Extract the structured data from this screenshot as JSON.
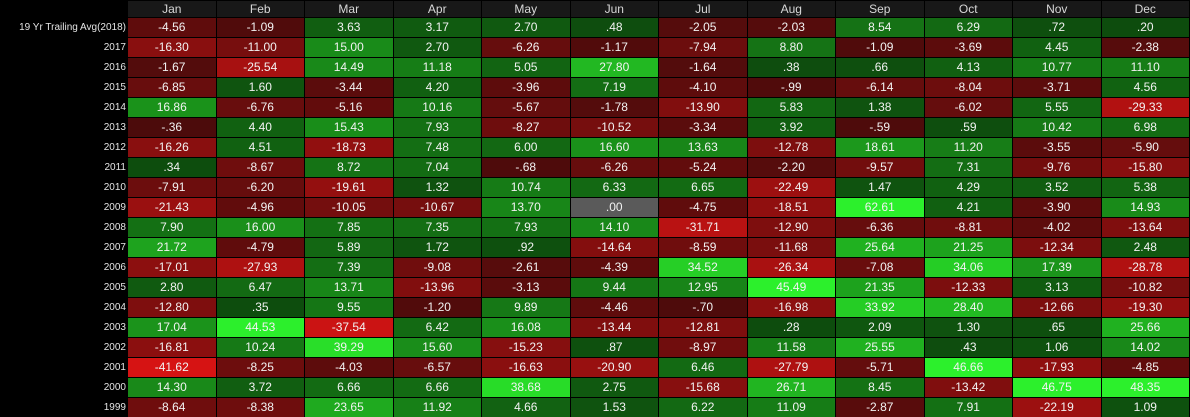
{
  "chart_data": {
    "type": "heatmap",
    "columns": [
      "Jan",
      "Feb",
      "Mar",
      "Apr",
      "May",
      "Jun",
      "Jul",
      "Aug",
      "Sep",
      "Oct",
      "Nov",
      "Dec"
    ],
    "rows": [
      {
        "label": "19 Yr Trailing Avg(2018)",
        "values": [
          "-4.56",
          "-1.09",
          "3.63",
          "3.17",
          "2.70",
          ".48",
          "-2.05",
          "-2.03",
          "8.54",
          "6.29",
          ".72",
          ".20"
        ]
      },
      {
        "label": "2017",
        "values": [
          "-16.30",
          "-11.00",
          "15.00",
          "2.70",
          "-6.26",
          "-1.17",
          "-7.94",
          "8.80",
          "-1.09",
          "-3.69",
          "4.45",
          "-2.38"
        ]
      },
      {
        "label": "2016",
        "values": [
          "-1.67",
          "-25.54",
          "14.49",
          "11.18",
          "5.05",
          "27.80",
          "-1.64",
          ".38",
          ".66",
          "4.13",
          "10.77",
          "11.10"
        ]
      },
      {
        "label": "2015",
        "values": [
          "-6.85",
          "1.60",
          "-3.44",
          "4.20",
          "-3.96",
          "7.19",
          "-4.10",
          "-.99",
          "-6.14",
          "-8.04",
          "-3.71",
          "4.56"
        ]
      },
      {
        "label": "2014",
        "values": [
          "16.86",
          "-6.76",
          "-5.16",
          "10.16",
          "-5.67",
          "-1.78",
          "-13.90",
          "5.83",
          "1.38",
          "-6.02",
          "5.55",
          "-29.33"
        ]
      },
      {
        "label": "2013",
        "values": [
          "-.36",
          "4.40",
          "15.43",
          "7.93",
          "-8.27",
          "-10.52",
          "-3.34",
          "3.92",
          "-.59",
          ".59",
          "10.42",
          "6.98"
        ]
      },
      {
        "label": "2012",
        "values": [
          "-16.26",
          "4.51",
          "-18.73",
          "7.48",
          "6.00",
          "16.60",
          "13.63",
          "-12.78",
          "18.61",
          "11.20",
          "-3.55",
          "-5.90"
        ]
      },
      {
        "label": "2011",
        "values": [
          ".34",
          "-8.67",
          "8.72",
          "7.04",
          "-.68",
          "-6.26",
          "-5.24",
          "-2.20",
          "-9.57",
          "7.31",
          "-9.76",
          "-15.80"
        ]
      },
      {
        "label": "2010",
        "values": [
          "-7.91",
          "-6.20",
          "-19.61",
          "1.32",
          "10.74",
          "6.33",
          "6.65",
          "-22.49",
          "1.47",
          "4.29",
          "3.52",
          "5.38"
        ]
      },
      {
        "label": "2009",
        "values": [
          "-21.43",
          "-4.96",
          "-10.05",
          "-10.67",
          "13.70",
          ".00",
          "-4.75",
          "-18.51",
          "62.61",
          "4.21",
          "-3.90",
          "14.93"
        ]
      },
      {
        "label": "2008",
        "values": [
          "7.90",
          "16.00",
          "7.85",
          "7.35",
          "7.93",
          "14.10",
          "-31.71",
          "-12.90",
          "-6.36",
          "-8.81",
          "-4.02",
          "-13.64"
        ]
      },
      {
        "label": "2007",
        "values": [
          "21.72",
          "-4.79",
          "5.89",
          "1.72",
          ".92",
          "-14.64",
          "-8.59",
          "-11.68",
          "25.64",
          "21.25",
          "-12.34",
          "2.48"
        ]
      },
      {
        "label": "2006",
        "values": [
          "-17.01",
          "-27.93",
          "7.39",
          "-9.08",
          "-2.61",
          "-4.39",
          "34.52",
          "-26.34",
          "-7.08",
          "34.06",
          "17.39",
          "-28.78"
        ]
      },
      {
        "label": "2005",
        "values": [
          "2.80",
          "6.47",
          "13.71",
          "-13.96",
          "-3.13",
          "9.44",
          "12.95",
          "45.49",
          "21.35",
          "-12.33",
          "3.13",
          "-10.82"
        ]
      },
      {
        "label": "2004",
        "values": [
          "-12.80",
          ".35",
          "9.55",
          "-1.20",
          "9.89",
          "-4.46",
          "-.70",
          "-16.98",
          "33.92",
          "28.40",
          "-12.66",
          "-19.30"
        ]
      },
      {
        "label": "2003",
        "values": [
          "17.04",
          "44.53",
          "-37.54",
          "6.42",
          "16.08",
          "-13.44",
          "-12.81",
          ".28",
          "2.09",
          "1.30",
          ".65",
          "25.66"
        ]
      },
      {
        "label": "2002",
        "values": [
          "-16.81",
          "10.24",
          "39.29",
          "15.60",
          "-15.23",
          ".87",
          "-8.97",
          "11.58",
          "25.55",
          ".43",
          "1.06",
          "14.02"
        ]
      },
      {
        "label": "2001",
        "values": [
          "-41.62",
          "-8.25",
          "-4.03",
          "-6.57",
          "-16.63",
          "-20.90",
          "6.46",
          "-27.79",
          "-5.71",
          "46.66",
          "-17.93",
          "-4.85"
        ]
      },
      {
        "label": "2000",
        "values": [
          "14.30",
          "3.72",
          "6.66",
          "6.66",
          "38.68",
          "2.75",
          "-15.68",
          "26.71",
          "8.45",
          "-13.42",
          "46.75",
          "48.35"
        ]
      },
      {
        "label": "1999",
        "values": [
          "-8.64",
          "-8.38",
          "23.65",
          "11.92",
          "4.66",
          "1.53",
          "6.22",
          "11.09",
          "-2.87",
          "7.91",
          "-22.19",
          "1.09"
        ]
      }
    ],
    "colors": {
      "positive_low": "#0d4a0d",
      "positive_high": "#2cf02c",
      "negative_low": "#4a0b0b",
      "negative_high": "#e01414",
      "zero": "#5a5a5a",
      "header_bg": "#181818",
      "text": "#f2f2f2"
    },
    "scale_max": 45
  }
}
